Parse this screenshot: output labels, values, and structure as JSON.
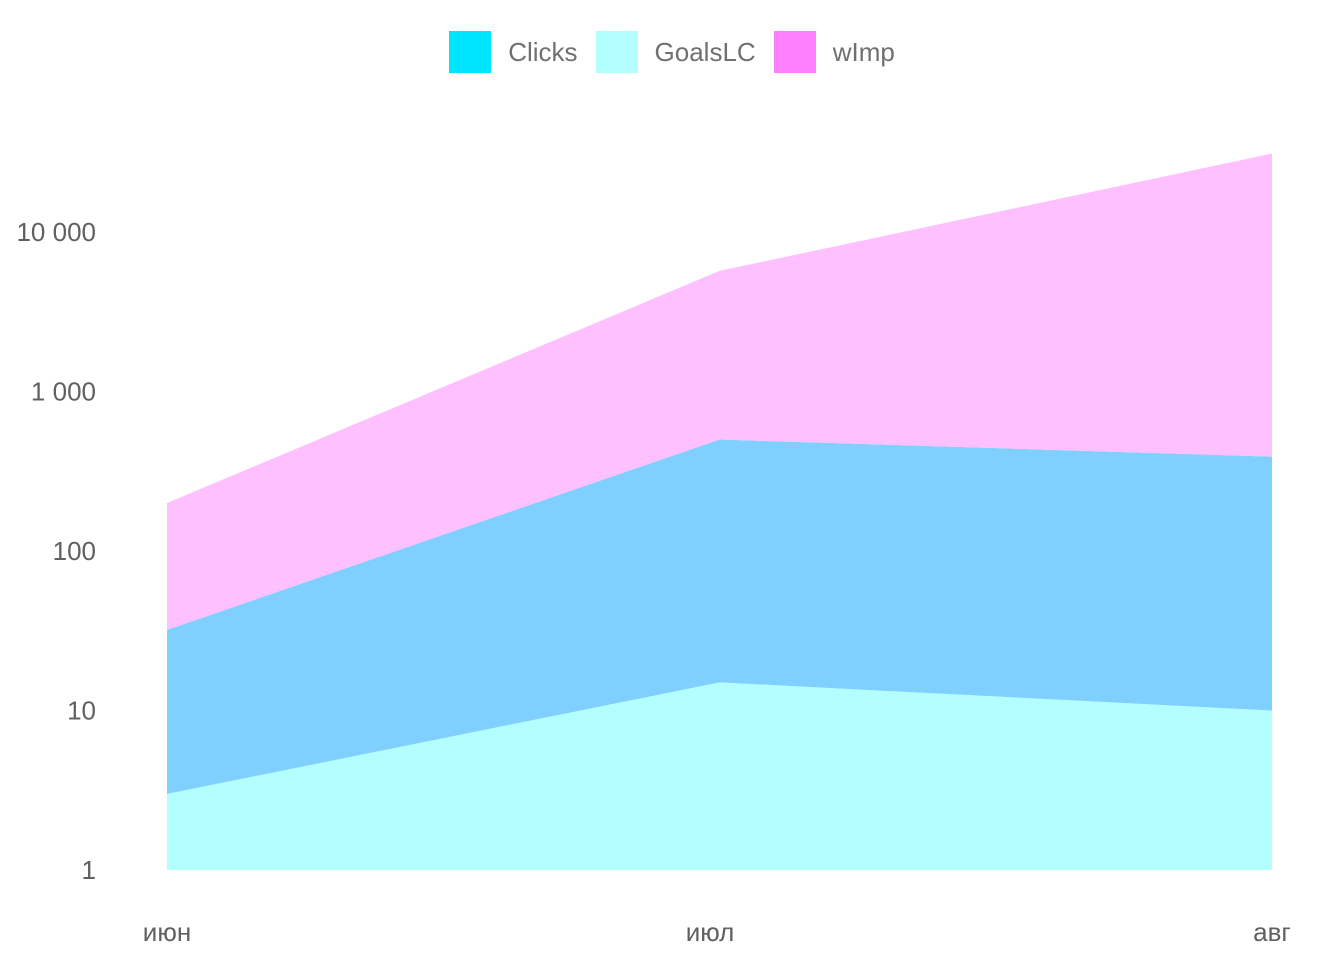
{
  "chart_data": {
    "type": "area",
    "stacked": true,
    "y_scale": "log10",
    "ylim": [
      1,
      31000
    ],
    "grid": false,
    "legend_position": "top",
    "categories": [
      "июн",
      "июл",
      "авг"
    ],
    "y_ticks": [
      {
        "value": 1,
        "label": "1"
      },
      {
        "value": 10,
        "label": "10"
      },
      {
        "value": 100,
        "label": "100"
      },
      {
        "value": 1000,
        "label": "1 000"
      },
      {
        "value": 10000,
        "label": "10 000"
      }
    ],
    "legend": [
      {
        "name": "Clicks",
        "color": "#00e5ff"
      },
      {
        "name": "GoalsLC",
        "color": "#b3ffff"
      },
      {
        "name": "wImp",
        "color": "#ff80ff"
      }
    ],
    "series": [
      {
        "name": "GoalsLC",
        "color": "#b3ffff",
        "lower": [
          1,
          1,
          1
        ],
        "upper": [
          3,
          15,
          10
        ]
      },
      {
        "name": "Clicks",
        "color": "#80d0ff",
        "lower": [
          3,
          15,
          10
        ],
        "upper": [
          32,
          500,
          390
        ]
      },
      {
        "name": "wImp",
        "color": "#ffc0ff",
        "lower": [
          32,
          500,
          390
        ],
        "upper": [
          200,
          5700,
          31000
        ]
      }
    ]
  }
}
